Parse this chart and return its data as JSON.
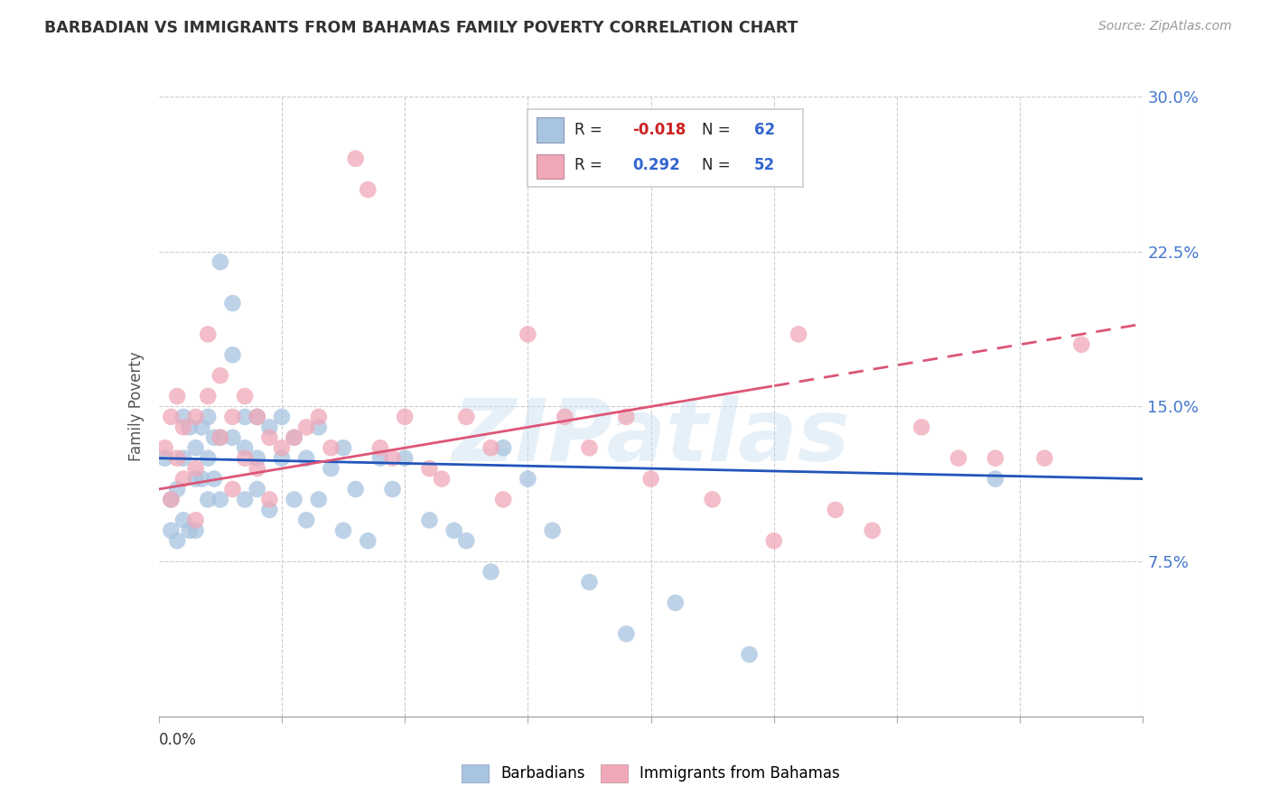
{
  "title": "BARBADIAN VS IMMIGRANTS FROM BAHAMAS FAMILY POVERTY CORRELATION CHART",
  "source": "Source: ZipAtlas.com",
  "ylabel": "Family Poverty",
  "xmin": 0.0,
  "xmax": 0.08,
  "ymin": 0.0,
  "ymax": 0.3,
  "yticks": [
    0.0,
    0.075,
    0.15,
    0.225,
    0.3
  ],
  "ytick_labels": [
    "",
    "7.5%",
    "15.0%",
    "22.5%",
    "30.0%"
  ],
  "blue_R": -0.018,
  "blue_N": 62,
  "pink_R": 0.292,
  "pink_N": 52,
  "blue_color": "#a8c4e0",
  "pink_color": "#f0a8b8",
  "blue_line_color": "#2255bb",
  "pink_line_color": "#dd5577",
  "legend_label_blue": "Barbadians",
  "legend_label_pink": "Immigrants from Bahamas",
  "watermark": "ZIPatlas",
  "blue_scatter_x": [
    0.0005,
    0.001,
    0.001,
    0.0015,
    0.0015,
    0.002,
    0.002,
    0.002,
    0.0025,
    0.0025,
    0.003,
    0.003,
    0.003,
    0.0035,
    0.0035,
    0.004,
    0.004,
    0.004,
    0.0045,
    0.0045,
    0.005,
    0.005,
    0.005,
    0.006,
    0.006,
    0.006,
    0.007,
    0.007,
    0.007,
    0.008,
    0.008,
    0.008,
    0.009,
    0.009,
    0.01,
    0.01,
    0.011,
    0.011,
    0.012,
    0.012,
    0.013,
    0.013,
    0.014,
    0.015,
    0.015,
    0.016,
    0.017,
    0.018,
    0.019,
    0.02,
    0.022,
    0.024,
    0.025,
    0.027,
    0.028,
    0.03,
    0.032,
    0.035,
    0.038,
    0.042,
    0.048,
    0.068
  ],
  "blue_scatter_y": [
    0.125,
    0.105,
    0.09,
    0.11,
    0.085,
    0.145,
    0.125,
    0.095,
    0.14,
    0.09,
    0.13,
    0.115,
    0.09,
    0.14,
    0.115,
    0.145,
    0.125,
    0.105,
    0.135,
    0.115,
    0.22,
    0.135,
    0.105,
    0.2,
    0.175,
    0.135,
    0.145,
    0.13,
    0.105,
    0.145,
    0.125,
    0.11,
    0.14,
    0.1,
    0.145,
    0.125,
    0.135,
    0.105,
    0.125,
    0.095,
    0.14,
    0.105,
    0.12,
    0.13,
    0.09,
    0.11,
    0.085,
    0.125,
    0.11,
    0.125,
    0.095,
    0.09,
    0.085,
    0.07,
    0.13,
    0.115,
    0.09,
    0.065,
    0.04,
    0.055,
    0.03,
    0.115
  ],
  "pink_scatter_x": [
    0.0005,
    0.001,
    0.001,
    0.0015,
    0.0015,
    0.002,
    0.002,
    0.003,
    0.003,
    0.003,
    0.004,
    0.004,
    0.005,
    0.005,
    0.006,
    0.006,
    0.007,
    0.007,
    0.008,
    0.008,
    0.009,
    0.009,
    0.01,
    0.011,
    0.012,
    0.013,
    0.014,
    0.016,
    0.017,
    0.018,
    0.019,
    0.02,
    0.022,
    0.023,
    0.025,
    0.027,
    0.028,
    0.03,
    0.033,
    0.035,
    0.038,
    0.04,
    0.045,
    0.05,
    0.052,
    0.055,
    0.058,
    0.062,
    0.065,
    0.068,
    0.072,
    0.075
  ],
  "pink_scatter_y": [
    0.13,
    0.145,
    0.105,
    0.155,
    0.125,
    0.14,
    0.115,
    0.145,
    0.12,
    0.095,
    0.185,
    0.155,
    0.165,
    0.135,
    0.145,
    0.11,
    0.155,
    0.125,
    0.145,
    0.12,
    0.135,
    0.105,
    0.13,
    0.135,
    0.14,
    0.145,
    0.13,
    0.27,
    0.255,
    0.13,
    0.125,
    0.145,
    0.12,
    0.115,
    0.145,
    0.13,
    0.105,
    0.185,
    0.145,
    0.13,
    0.145,
    0.115,
    0.105,
    0.085,
    0.185,
    0.1,
    0.09,
    0.14,
    0.125,
    0.125,
    0.125,
    0.18
  ]
}
